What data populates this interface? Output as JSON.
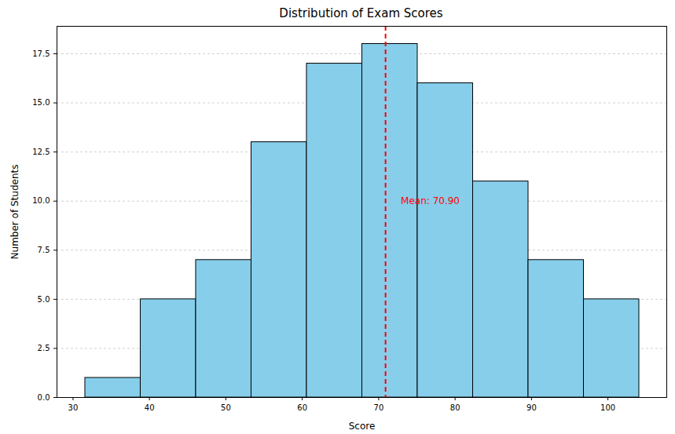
{
  "chart_data": {
    "type": "histogram",
    "title": "Distribution of Exam Scores",
    "x_label": "Score",
    "y_label": "Number of Students",
    "bins": [
      31.6,
      38.85,
      46.1,
      53.35,
      60.6,
      67.85,
      75.1,
      82.35,
      89.6,
      96.85,
      104.1
    ],
    "values": [
      1,
      5,
      7,
      13,
      17,
      18,
      16,
      11,
      7,
      5
    ],
    "color": "#87ceeb",
    "xlim": [
      27.9,
      107.7
    ],
    "xticks": [
      30,
      40,
      50,
      60,
      70,
      80,
      90,
      100
    ],
    "ylim": [
      0,
      18.9
    ],
    "yticks": [
      {
        "value": 0,
        "label": "0.0"
      },
      {
        "value": 2.5,
        "label": "2.5"
      },
      {
        "value": 5,
        "label": "5.0"
      },
      {
        "value": 7.5,
        "label": "7.5"
      },
      {
        "value": 10,
        "label": "10.0"
      },
      {
        "value": 12.5,
        "label": "12.5"
      },
      {
        "value": 15,
        "label": "15.0"
      },
      {
        "value": 17.5,
        "label": "17.5"
      }
    ],
    "grid": "y",
    "mean_line": {
      "value": 70.9,
      "color": "#ff0000",
      "line_style": "dashed"
    },
    "annotations": [
      {
        "text": "Mean: 70.90",
        "x": 72.9,
        "y": 10,
        "color": "#ff0000"
      }
    ]
  }
}
